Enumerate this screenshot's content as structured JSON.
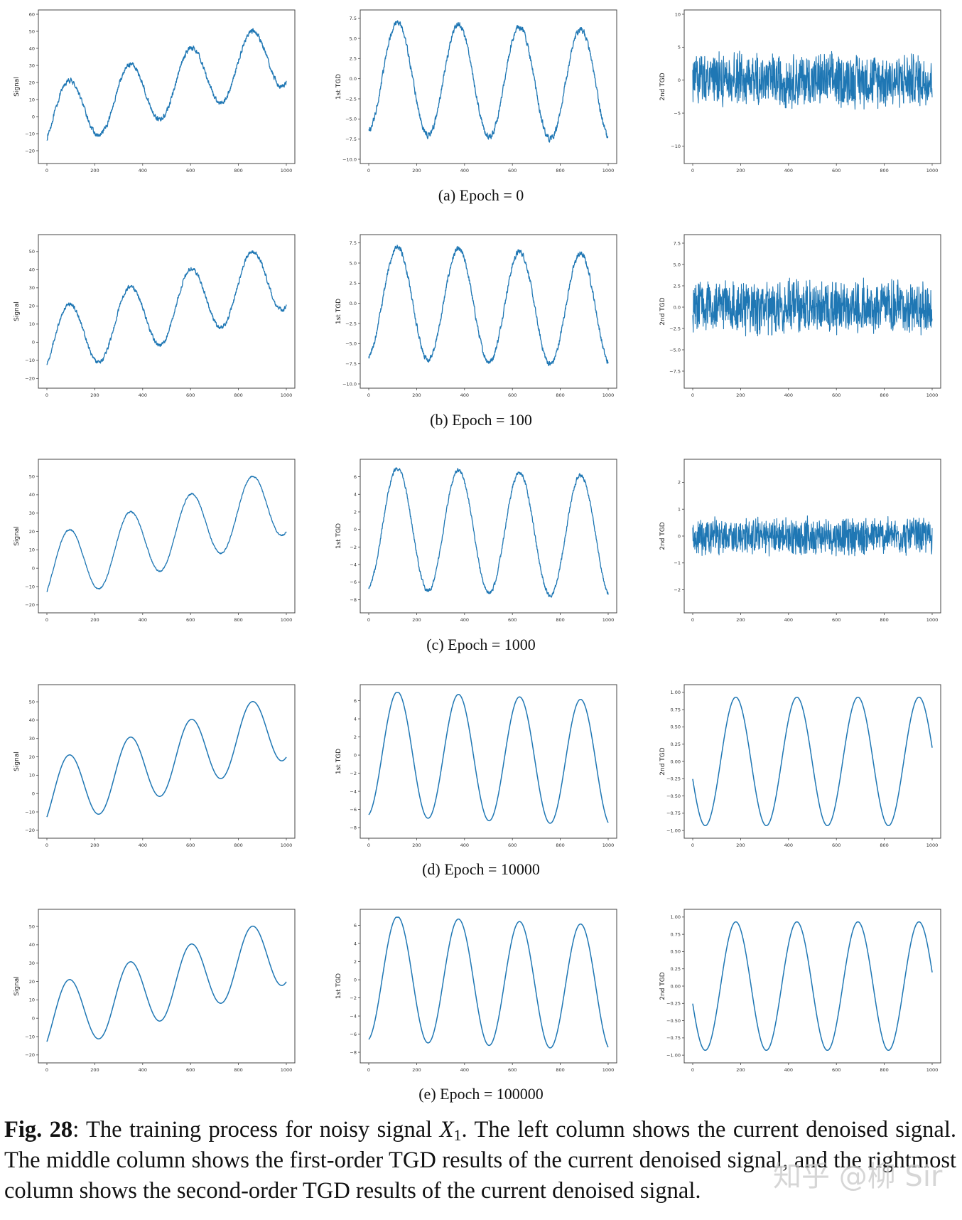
{
  "rows": [
    {
      "caption": "(a)  Epoch = 0"
    },
    {
      "caption": "(b)  Epoch = 100"
    },
    {
      "caption": "(c)  Epoch = 1000"
    },
    {
      "caption": "(d)  Epoch = 10000"
    },
    {
      "caption": "(e)  Epoch = 100000"
    }
  ],
  "figure_caption": {
    "label": "Fig. 28",
    "text_before": ": The training process for noisy signal ",
    "variable": "X",
    "subscript": "1",
    "text_after": ". The left column shows the current denoised signal. The middle column shows the first-order TGD results of the current denoised signal, and the rightmost column shows the second-order TGD results of the current denoised signal."
  },
  "watermark": "知乎 @柳 Sir",
  "line_color": "#1f77b4",
  "chart_data": [
    {
      "type": "line",
      "row": 0,
      "col": 0,
      "ylabel": "Signal",
      "xlim": [
        0,
        1000
      ],
      "ylim": [
        -25,
        60
      ],
      "xticks": [
        0,
        200,
        400,
        600,
        800,
        1000
      ],
      "yticks": [
        -20,
        -10,
        0,
        10,
        20,
        30,
        40,
        50,
        60
      ],
      "noise": 2.2,
      "fn": "signal",
      "x_range": [
        0,
        1000
      ],
      "y_range": [
        -21,
        56
      ]
    },
    {
      "type": "line",
      "row": 0,
      "col": 1,
      "ylabel": "1st TGD",
      "xlim": [
        0,
        1000
      ],
      "ylim": [
        -10,
        8
      ],
      "xticks": [
        0,
        200,
        400,
        600,
        800,
        1000
      ],
      "yticks": [
        -10.0,
        -7.5,
        -5.0,
        -2.5,
        0.0,
        2.5,
        5.0,
        7.5
      ],
      "noise": 0.6,
      "fn": "tgd1",
      "x_range": [
        0,
        1000
      ],
      "y_range": [
        -9.5,
        7.8
      ]
    },
    {
      "type": "line",
      "row": 0,
      "col": 2,
      "ylabel": "2nd TGD",
      "xlim": [
        0,
        1000
      ],
      "ylim": [
        -12,
        10
      ],
      "xticks": [
        0,
        200,
        400,
        600,
        800,
        1000
      ],
      "yticks": [
        -10,
        -5,
        0,
        5,
        10
      ],
      "noise": 4.2,
      "fn": "noise",
      "x_range": [
        0,
        1000
      ],
      "y_range": [
        -11,
        10
      ]
    },
    {
      "type": "line",
      "row": 1,
      "col": 0,
      "ylabel": "Signal",
      "xlim": [
        0,
        1000
      ],
      "ylim": [
        -23,
        57
      ],
      "xticks": [
        0,
        200,
        400,
        600,
        800,
        1000
      ],
      "yticks": [
        -20,
        -10,
        0,
        10,
        20,
        30,
        40,
        50
      ],
      "noise": 1.8,
      "fn": "signal",
      "x_range": [
        0,
        1000
      ],
      "y_range": [
        -21,
        55
      ]
    },
    {
      "type": "line",
      "row": 1,
      "col": 1,
      "ylabel": "1st TGD",
      "xlim": [
        0,
        1000
      ],
      "ylim": [
        -10,
        8
      ],
      "xticks": [
        0,
        200,
        400,
        600,
        800,
        1000
      ],
      "yticks": [
        -10.0,
        -7.5,
        -5.0,
        -2.5,
        0.0,
        2.5,
        5.0,
        7.5
      ],
      "noise": 0.55,
      "fn": "tgd1",
      "x_range": [
        0,
        1000
      ],
      "y_range": [
        -9.5,
        7.6
      ]
    },
    {
      "type": "line",
      "row": 1,
      "col": 2,
      "ylabel": "2nd TGD",
      "xlim": [
        0,
        1000
      ],
      "ylim": [
        -9,
        8
      ],
      "xticks": [
        0,
        200,
        400,
        600,
        800,
        1000
      ],
      "yticks": [
        -7.5,
        -5.0,
        -2.5,
        0.0,
        2.5,
        5.0,
        7.5
      ],
      "noise": 3.2,
      "fn": "noise",
      "x_range": [
        0,
        1000
      ],
      "y_range": [
        -9,
        7.8
      ]
    },
    {
      "type": "line",
      "row": 2,
      "col": 0,
      "ylabel": "Signal",
      "xlim": [
        0,
        1000
      ],
      "ylim": [
        -22,
        57
      ],
      "xticks": [
        0,
        200,
        400,
        600,
        800,
        1000
      ],
      "yticks": [
        -20,
        -10,
        0,
        10,
        20,
        30,
        40,
        50
      ],
      "noise": 0.6,
      "fn": "signal",
      "x_range": [
        0,
        1000
      ],
      "y_range": [
        -19,
        54
      ]
    },
    {
      "type": "line",
      "row": 2,
      "col": 1,
      "ylabel": "1st TGD",
      "xlim": [
        0,
        1000
      ],
      "ylim": [
        -9,
        7.5
      ],
      "xticks": [
        0,
        200,
        400,
        600,
        800,
        1000
      ],
      "yticks": [
        -8,
        -6,
        -4,
        -2,
        0,
        2,
        4,
        6
      ],
      "noise": 0.35,
      "fn": "tgd1",
      "x_range": [
        0,
        1000
      ],
      "y_range": [
        -8.2,
        7
      ]
    },
    {
      "type": "line",
      "row": 2,
      "col": 2,
      "ylabel": "2nd TGD",
      "xlim": [
        0,
        1000
      ],
      "ylim": [
        -2.7,
        2.7
      ],
      "xticks": [
        0,
        200,
        400,
        600,
        800,
        1000
      ],
      "yticks": [
        -2,
        -1,
        0,
        1,
        2
      ],
      "noise": 0.7,
      "fn": "noise",
      "x_range": [
        0,
        1000
      ],
      "y_range": [
        -2.5,
        2.6
      ]
    },
    {
      "type": "line",
      "row": 3,
      "col": 0,
      "ylabel": "Signal",
      "xlim": [
        0,
        1000
      ],
      "ylim": [
        -22,
        57
      ],
      "xticks": [
        0,
        200,
        400,
        600,
        800,
        1000
      ],
      "yticks": [
        -20,
        -10,
        0,
        10,
        20,
        30,
        40,
        50
      ],
      "noise": 0,
      "fn": "signal",
      "x_range": [
        0,
        1000
      ],
      "y_range": [
        -19,
        54
      ]
    },
    {
      "type": "line",
      "row": 3,
      "col": 1,
      "ylabel": "1st TGD",
      "xlim": [
        0,
        1000
      ],
      "ylim": [
        -8.7,
        7.3
      ],
      "xticks": [
        0,
        200,
        400,
        600,
        800,
        1000
      ],
      "yticks": [
        -8,
        -6,
        -4,
        -2,
        0,
        2,
        4,
        6
      ],
      "noise": 0,
      "fn": "tgd1",
      "x_range": [
        0,
        1000
      ],
      "y_range": [
        -8,
        6.9
      ]
    },
    {
      "type": "line",
      "row": 3,
      "col": 2,
      "ylabel": "2nd TGD",
      "xlim": [
        0,
        1000
      ],
      "ylim": [
        -1.05,
        1.05
      ],
      "xticks": [
        0,
        200,
        400,
        600,
        800,
        1000
      ],
      "yticks": [
        -1.0,
        -0.75,
        -0.5,
        -0.25,
        0.0,
        0.25,
        0.5,
        0.75,
        1.0
      ],
      "noise": 0,
      "fn": "tgd2",
      "x_range": [
        0,
        1000
      ],
      "y_range": [
        -1,
        0.97
      ]
    },
    {
      "type": "line",
      "row": 4,
      "col": 0,
      "ylabel": "Signal",
      "xlim": [
        0,
        1000
      ],
      "ylim": [
        -22,
        57
      ],
      "xticks": [
        0,
        200,
        400,
        600,
        800,
        1000
      ],
      "yticks": [
        -20,
        -10,
        0,
        10,
        20,
        30,
        40,
        50
      ],
      "noise": 0,
      "fn": "signal",
      "x_range": [
        0,
        1000
      ],
      "y_range": [
        -19,
        54
      ]
    },
    {
      "type": "line",
      "row": 4,
      "col": 1,
      "ylabel": "1st TGD",
      "xlim": [
        0,
        1000
      ],
      "ylim": [
        -8.7,
        7.3
      ],
      "xticks": [
        0,
        200,
        400,
        600,
        800,
        1000
      ],
      "yticks": [
        -8,
        -6,
        -4,
        -2,
        0,
        2,
        4,
        6
      ],
      "noise": 0,
      "fn": "tgd1",
      "x_range": [
        0,
        1000
      ],
      "y_range": [
        -8,
        6.9
      ]
    },
    {
      "type": "line",
      "row": 4,
      "col": 2,
      "ylabel": "2nd TGD",
      "xlim": [
        0,
        1000
      ],
      "ylim": [
        -1.05,
        1.05
      ],
      "xticks": [
        0,
        200,
        400,
        600,
        800,
        1000
      ],
      "yticks": [
        -1.0,
        -0.75,
        -0.5,
        -0.25,
        0.0,
        0.25,
        0.5,
        0.75,
        1.0
      ],
      "noise": 0,
      "fn": "tgd2",
      "x_range": [
        0,
        1000
      ],
      "y_range": [
        -1,
        0.95
      ]
    }
  ]
}
